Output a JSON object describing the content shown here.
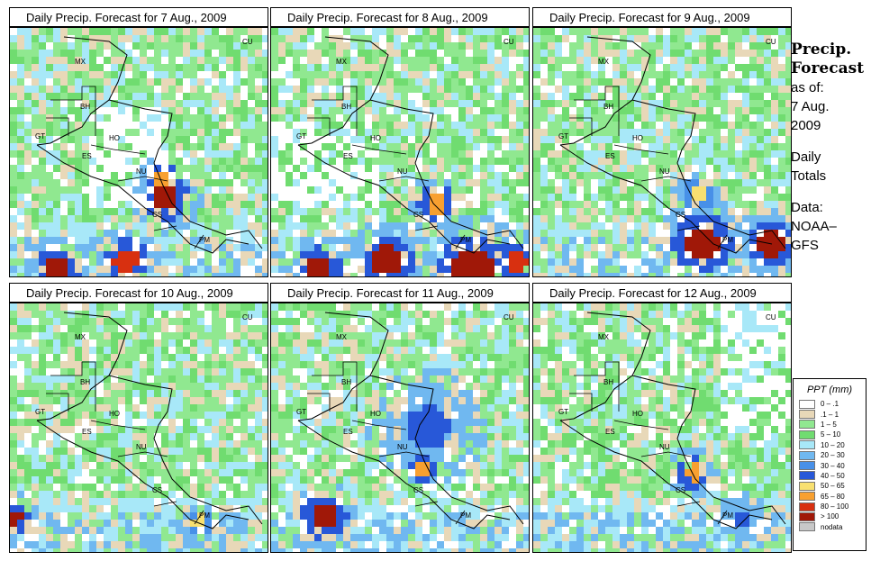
{
  "panels": [
    {
      "title": "Daily Precip. Forecast for  7 Aug., 2009"
    },
    {
      "title": "Daily Precip. Forecast for  8 Aug., 2009"
    },
    {
      "title": "Daily Precip. Forecast for  9 Aug., 2009"
    },
    {
      "title": "Daily Precip. Forecast for  10 Aug., 2009"
    },
    {
      "title": "Daily Precip. Forecast for  11 Aug., 2009"
    },
    {
      "title": "Daily Precip. Forecast for  12 Aug., 2009"
    }
  ],
  "country_labels": [
    "MX",
    "BH",
    "GT",
    "HO",
    "ES",
    "NU",
    "CS",
    "PM",
    "CU"
  ],
  "side": {
    "heading1": "Precip.",
    "heading2": "Forecast",
    "line1": "as of:",
    "line2": "7 Aug.",
    "line3": "2009",
    "line4": "Daily",
    "line5": "Totals",
    "line6": "Data:",
    "line7": "NOAA–",
    "line8": "GFS"
  },
  "legend": {
    "title": "PPT (mm)",
    "items": [
      {
        "label": "0 – .1",
        "color": "#ffffff"
      },
      {
        "label": ".1 – 1",
        "color": "#e8d8b8"
      },
      {
        "label": "1 – 5",
        "color": "#90e890"
      },
      {
        "label": "5 – 10",
        "color": "#70dc70"
      },
      {
        "label": "10 – 20",
        "color": "#a8e8f8"
      },
      {
        "label": "20 – 30",
        "color": "#70b8f0"
      },
      {
        "label": "30 – 40",
        "color": "#4890e8"
      },
      {
        "label": "40 – 50",
        "color": "#2858d8"
      },
      {
        "label": "50 – 65",
        "color": "#f8e070"
      },
      {
        "label": "65 – 80",
        "color": "#f8a030"
      },
      {
        "label": "80 – 100",
        "color": "#d83010"
      },
      {
        "label": "> 100",
        "color": "#a01808"
      },
      {
        "label": "nodata",
        "color": "#c8c8c8"
      }
    ]
  }
}
